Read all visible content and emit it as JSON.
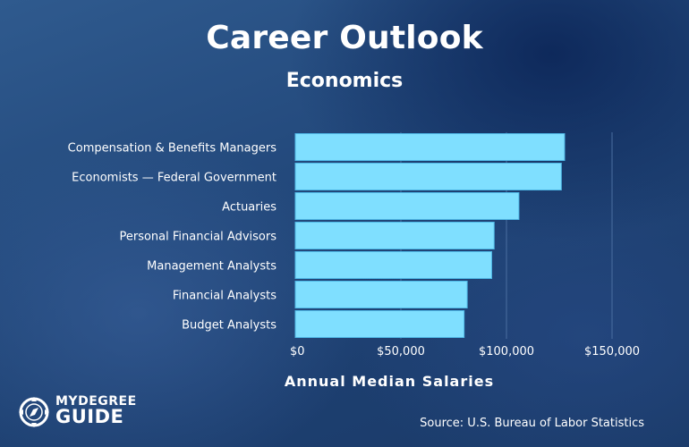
{
  "header": {
    "title": "Career Outlook",
    "subtitle": "Economics"
  },
  "chart_data": {
    "type": "bar",
    "orientation": "horizontal",
    "categories": [
      "Compensation & Benefits Managers",
      "Economists — Federal Government",
      "Actuaries",
      "Personal Financial Advisors",
      "Management Analysts",
      "Financial Analysts",
      "Budget Analysts"
    ],
    "values": [
      127530,
      125980,
      105900,
      94170,
      93000,
      81410,
      79940
    ],
    "xlabel": "Annual Median Salaries",
    "ylabel": "",
    "xlim": [
      0,
      150000
    ],
    "ticks": [
      0,
      50000,
      100000,
      150000
    ],
    "tick_labels": [
      "$0",
      "$50,000",
      "$100,000",
      "$150,000"
    ],
    "grid": true,
    "bar_color": "#7fdfff",
    "grid_color": "#4a6ea0"
  },
  "source": "Source: U.S. Bureau of Labor Statistics",
  "logo": {
    "line1": "MYDEGREE",
    "line2": "GUIDE",
    "icon": "compass-icon"
  }
}
